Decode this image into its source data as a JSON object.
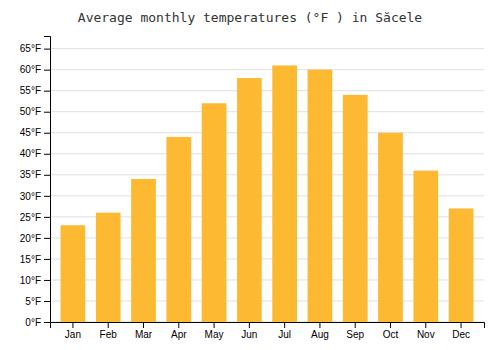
{
  "chart_data": {
    "type": "bar",
    "title": "Average monthly temperatures (°F ) in Săcele",
    "categories": [
      "Jan",
      "Feb",
      "Mar",
      "Apr",
      "May",
      "Jun",
      "Jul",
      "Aug",
      "Sep",
      "Oct",
      "Nov",
      "Dec"
    ],
    "values": [
      23,
      26,
      34,
      44,
      52,
      58,
      61,
      60,
      54,
      45,
      36,
      27
    ],
    "color": "#FDB932",
    "ylim": [
      0,
      68
    ],
    "yticks": [
      {
        "value": 0,
        "label": "0°F"
      },
      {
        "value": 5,
        "label": "5°F"
      },
      {
        "value": 10,
        "label": "10°F"
      },
      {
        "value": 15,
        "label": "15°F"
      },
      {
        "value": 20,
        "label": "20°F"
      },
      {
        "value": 25,
        "label": "25°F"
      },
      {
        "value": 30,
        "label": "30°F"
      },
      {
        "value": 35,
        "label": "35°F"
      },
      {
        "value": 40,
        "label": "40°F"
      },
      {
        "value": 45,
        "label": "45°F"
      },
      {
        "value": 50,
        "label": "50°F"
      },
      {
        "value": 55,
        "label": "55°F"
      },
      {
        "value": 60,
        "label": "60°F"
      },
      {
        "value": 65,
        "label": "65°F"
      }
    ],
    "grid": true
  }
}
